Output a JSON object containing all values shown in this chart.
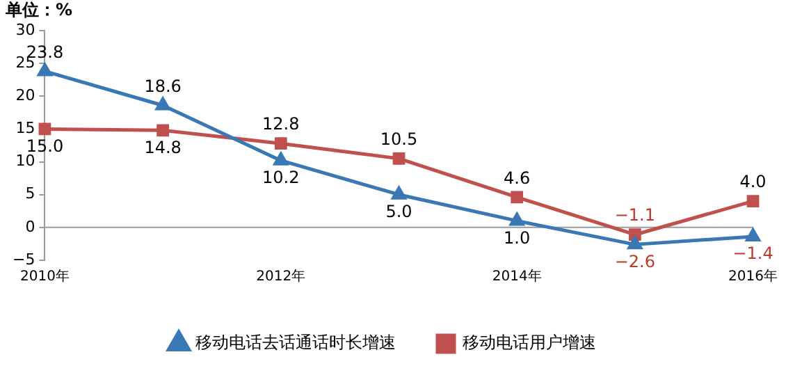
{
  "chart_data": {
    "type": "line",
    "ylabel": "单位：%",
    "categories": [
      "2010年",
      null,
      "2012年",
      null,
      "2014年",
      null,
      "2016年"
    ],
    "series": [
      {
        "name": "移动电话去话通话时长增速",
        "color": "#3a78b5",
        "marker": "triangle",
        "values": [
          23.8,
          18.6,
          10.2,
          5.0,
          1.0,
          -2.6,
          -1.4
        ],
        "value_labels": [
          "23.8",
          "18.6",
          "10.2",
          "5.0",
          "1.0",
          "−2.6",
          "−1.4"
        ]
      },
      {
        "name": "移动电话用户增速",
        "color": "#c0504d",
        "marker": "square",
        "values": [
          15.0,
          14.8,
          12.8,
          10.5,
          4.6,
          -1.1,
          4.0
        ],
        "value_labels": [
          "15.0",
          "14.8",
          "12.8",
          "10.5",
          "4.6",
          "−1.1",
          "4.0"
        ]
      }
    ],
    "ylim": [
      -5,
      30
    ],
    "yticks": [
      -5,
      0,
      5,
      10,
      15,
      20,
      25,
      30
    ],
    "ref_lines": [
      {
        "axis": "y",
        "value": 0,
        "color": "#999999"
      }
    ],
    "legend": "bottom"
  }
}
